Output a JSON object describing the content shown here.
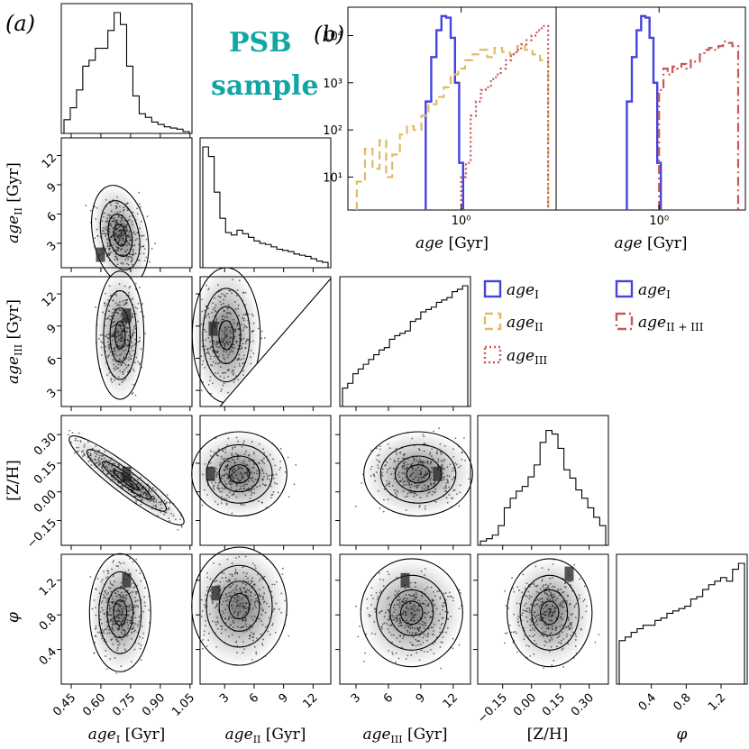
{
  "labels": {
    "panel_a": "(a)",
    "panel_b": "(b)",
    "title_line1": "PSB",
    "title_line2": "sample"
  },
  "colors": {
    "title": "#12a5a5",
    "age_I": "#4444dd",
    "age_II": "#e0bb66",
    "age_III": "#cc5555",
    "age_II_III": "#c85858"
  },
  "chart_data": [
    {
      "type": "histogram",
      "panel": "corner-diag-1",
      "variable": "age_I [Gyr]",
      "bin_edges": [
        0.45,
        0.48,
        0.51,
        0.54,
        0.57,
        0.6,
        0.63,
        0.66,
        0.69,
        0.72,
        0.75,
        0.78,
        0.81,
        0.84,
        0.87,
        0.9,
        0.93,
        0.96,
        0.99,
        1.02,
        1.05
      ],
      "counts": [
        0.1,
        0.2,
        0.35,
        0.55,
        0.6,
        0.7,
        0.7,
        0.85,
        1.0,
        0.9,
        0.55,
        0.3,
        0.15,
        0.12,
        0.08,
        0.06,
        0.04,
        0.03,
        0.02,
        0.0
      ]
    },
    {
      "type": "histogram",
      "panel": "corner-diag-2",
      "variable": "age_II [Gyr]",
      "bin_edges": [
        0.5,
        1.1,
        1.7,
        2.3,
        2.9,
        3.5,
        4.1,
        4.7,
        5.3,
        5.9,
        6.5,
        7.1,
        7.7,
        8.3,
        8.9,
        9.5,
        10.1,
        10.7,
        11.3,
        11.9,
        12.5,
        13.1,
        13.7
      ],
      "counts": [
        1.0,
        0.92,
        0.62,
        0.4,
        0.28,
        0.26,
        0.3,
        0.27,
        0.24,
        0.21,
        0.19,
        0.18,
        0.16,
        0.14,
        0.13,
        0.12,
        0.1,
        0.09,
        0.08,
        0.06,
        0.04,
        0.03
      ]
    },
    {
      "type": "histogram",
      "panel": "corner-diag-3",
      "variable": "age_III [Gyr]",
      "bin_edges": [
        1.5,
        2.0,
        2.5,
        3.0,
        3.5,
        4.0,
        4.5,
        5.0,
        5.5,
        6.0,
        6.5,
        7.0,
        7.5,
        8.0,
        8.5,
        9.0,
        9.5,
        10.0,
        10.5,
        11.0,
        11.5,
        12.0,
        12.5,
        13.0,
        13.5
      ],
      "counts": [
        0.14,
        0.18,
        0.26,
        0.3,
        0.34,
        0.38,
        0.42,
        0.46,
        0.48,
        0.55,
        0.58,
        0.6,
        0.62,
        0.7,
        0.72,
        0.78,
        0.8,
        0.82,
        0.86,
        0.88,
        0.9,
        0.95,
        0.97,
        1.0
      ]
    },
    {
      "type": "histogram",
      "panel": "corner-diag-4",
      "variable": "[Z/H]",
      "bin_edges": [
        -0.25,
        -0.22,
        -0.19,
        -0.16,
        -0.13,
        -0.1,
        -0.07,
        -0.04,
        -0.01,
        0.02,
        0.05,
        0.08,
        0.11,
        0.14,
        0.17,
        0.2,
        0.23,
        0.26,
        0.29,
        0.32,
        0.35,
        0.38
      ],
      "counts": [
        0.02,
        0.04,
        0.07,
        0.15,
        0.3,
        0.38,
        0.44,
        0.48,
        0.56,
        0.66,
        0.85,
        0.95,
        0.92,
        0.8,
        0.62,
        0.55,
        0.45,
        0.38,
        0.3,
        0.22,
        0.15
      ]
    },
    {
      "type": "histogram",
      "panel": "corner-diag-5",
      "variable": "φ",
      "bin_edges": [
        0.0,
        0.07,
        0.14,
        0.21,
        0.28,
        0.35,
        0.42,
        0.49,
        0.56,
        0.63,
        0.7,
        0.77,
        0.84,
        0.91,
        0.98,
        1.05,
        1.12,
        1.19,
        1.26,
        1.33,
        1.4,
        1.47
      ],
      "counts": [
        0.35,
        0.38,
        0.42,
        0.45,
        0.48,
        0.48,
        0.52,
        0.54,
        0.58,
        0.6,
        0.62,
        0.64,
        0.7,
        0.72,
        0.78,
        0.82,
        0.85,
        0.88,
        0.85,
        0.95,
        1.0
      ]
    },
    {
      "type": "histogram",
      "panel": "b-left",
      "xscale": "log",
      "yscale": "log",
      "xlabel": "age [Gyr]",
      "ytick_labels": [
        "10¹",
        "10²",
        "10³",
        "10⁴"
      ],
      "xtick_labels": [
        "10⁰"
      ],
      "ylim": [
        2,
        40000
      ],
      "xlim": [
        0.32,
        2.6
      ],
      "series": [
        {
          "name": "age_I",
          "bin_edges": [
            0.7,
            0.74,
            0.78,
            0.82,
            0.86,
            0.9,
            0.94,
            0.98,
            1.02
          ],
          "counts": [
            400,
            3500,
            13000,
            26000,
            24000,
            9000,
            1000,
            20
          ]
        },
        {
          "name": "age_II",
          "bin_edges": [
            0.35,
            0.38,
            0.41,
            0.44,
            0.47,
            0.5,
            0.54,
            0.58,
            0.62,
            0.67,
            0.72,
            0.78,
            0.84,
            0.9,
            0.97,
            1.04,
            1.12,
            1.21,
            1.3,
            1.4,
            1.51,
            1.63,
            1.76,
            1.9,
            2.05,
            2.21,
            2.4
          ],
          "counts": [
            8,
            40,
            15,
            60,
            10,
            30,
            80,
            120,
            100,
            200,
            350,
            500,
            800,
            1500,
            2000,
            3000,
            4000,
            5000,
            3500,
            5500,
            4500,
            4000,
            6000,
            5000,
            4000,
            3000
          ]
        },
        {
          "name": "age_III",
          "bin_edges": [
            1.0,
            1.05,
            1.1,
            1.16,
            1.22,
            1.28,
            1.35,
            1.42,
            1.49,
            1.57,
            1.65,
            1.74,
            1.83,
            1.93,
            2.03,
            2.14,
            2.25,
            2.4
          ],
          "counts": [
            10,
            20,
            200,
            400,
            700,
            800,
            1200,
            1500,
            2000,
            3000,
            4000,
            5000,
            6500,
            8000,
            10000,
            13000,
            16000
          ]
        }
      ]
    },
    {
      "type": "histogram",
      "panel": "b-right",
      "xscale": "log",
      "yscale": "log",
      "xlabel": "age [Gyr]",
      "xtick_labels": [
        "10⁰"
      ],
      "ylim": [
        2,
        40000
      ],
      "xlim": [
        0.32,
        2.6
      ],
      "series": [
        {
          "name": "age_I",
          "bin_edges": [
            0.7,
            0.74,
            0.78,
            0.82,
            0.86,
            0.9,
            0.94,
            0.98,
            1.02
          ],
          "counts": [
            400,
            3500,
            13000,
            26000,
            24000,
            9000,
            1000,
            20
          ]
        },
        {
          "name": "age_II+III",
          "bin_edges": [
            1.0,
            1.05,
            1.1,
            1.16,
            1.22,
            1.28,
            1.35,
            1.42,
            1.49,
            1.57,
            1.65,
            1.74,
            1.83,
            1.93,
            2.03,
            2.14,
            2.25,
            2.4
          ],
          "counts": [
            700,
            2000,
            1500,
            2200,
            2000,
            2500,
            2000,
            3000,
            2800,
            4000,
            5000,
            5500,
            5000,
            6000,
            7500,
            7000,
            6000
          ]
        }
      ]
    },
    {
      "type": "legend",
      "left": [
        "age_I",
        "age_II",
        "age_III"
      ],
      "right": [
        "age_I",
        "age_II+III"
      ]
    }
  ],
  "ticks": {
    "x_ageI": [
      "0.45",
      "0.60",
      "0.75",
      "0.90",
      "1.05"
    ],
    "x_ageII": [
      "3",
      "6",
      "9",
      "12"
    ],
    "x_ageIII": [
      "3",
      "6",
      "9",
      "12"
    ],
    "x_ZH": [
      "−0.15",
      "0.00",
      "0.15",
      "0.30"
    ],
    "x_phi": [
      "0.4",
      "0.8",
      "1.2"
    ],
    "y_ageII": [
      "3",
      "6",
      "9",
      "12"
    ],
    "y_ageIII": [
      "3",
      "6",
      "9",
      "12"
    ],
    "y_ZH": [
      "−0.15",
      "0.00",
      "0.15",
      "0.30"
    ],
    "y_phi": [
      "0.4",
      "0.8",
      "1.2"
    ]
  },
  "axis_labels": {
    "ageI": "age",
    "ageI_sub": "I",
    "ageII": "age",
    "ageII_sub": "II",
    "ageIII": "age",
    "ageIII_sub": "III",
    "unit": "[Gyr]",
    "ZH": "[Z/H]",
    "phi": "φ",
    "age_b": "age",
    "age_unit": "[Gyr]"
  },
  "legend_labels": {
    "age": "age",
    "sub_I": "I",
    "sub_II": "II",
    "sub_III": "III",
    "sub_II_III": "II + III"
  }
}
